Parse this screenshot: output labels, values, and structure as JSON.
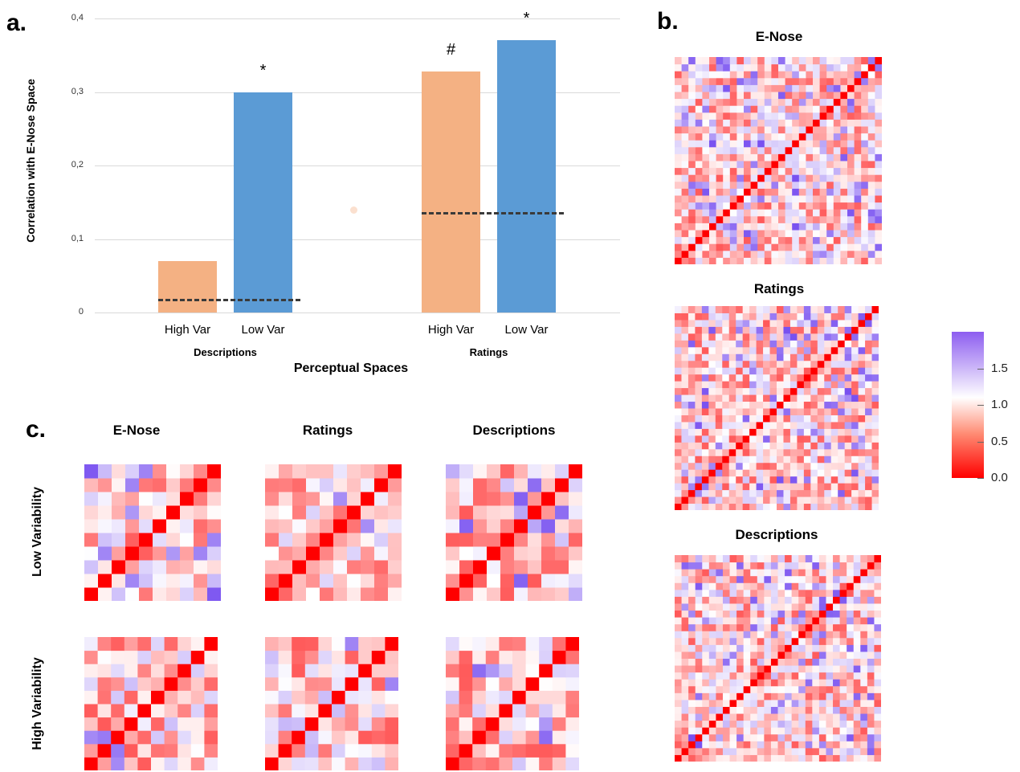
{
  "panels": {
    "a": "a.",
    "b": "b.",
    "c": "c."
  },
  "chart_data": {
    "type": "bar",
    "ylabel": "Correlation with E-Nose Space",
    "xlabel": "Perceptual Spaces",
    "ylim": [
      0,
      0.4
    ],
    "yticks": [
      "0",
      "0,1",
      "0,2",
      "0,3",
      "0,4"
    ],
    "grid": true,
    "groups": [
      {
        "name": "Descriptions",
        "bars": [
          {
            "label": "High Var",
            "value": 0.07,
            "color": "#f4b183",
            "sig": ""
          },
          {
            "label": "Low Var",
            "value": 0.3,
            "color": "#5b9bd5",
            "sig": "*"
          }
        ],
        "baseline": 0.018
      },
      {
        "name": "Ratings",
        "bars": [
          {
            "label": "High Var",
            "value": 0.328,
            "color": "#f4b183",
            "sig": "#"
          },
          {
            "label": "Low Var",
            "value": 0.37,
            "color": "#5b9bd5",
            "sig": "*"
          }
        ],
        "baseline": 0.135
      }
    ],
    "stray_marker": {
      "value": 0.14,
      "color": "#fbe0cf"
    }
  },
  "panel_b": {
    "titles": [
      "E-Nose",
      "Ratings",
      "Descriptions"
    ],
    "colorbar": {
      "labels": [
        "1.5",
        "1.0",
        "0.5",
        "0.0"
      ],
      "values": [
        1.5,
        1.0,
        0.5,
        0.0
      ],
      "range": [
        0,
        2
      ],
      "colors": [
        "#ff0000",
        "#ffffff",
        "#8d5df0"
      ]
    }
  },
  "panel_c": {
    "columns": [
      "E-Nose",
      "Ratings",
      "Descriptions"
    ],
    "rows": [
      "Low Variability",
      "High Variability"
    ]
  }
}
